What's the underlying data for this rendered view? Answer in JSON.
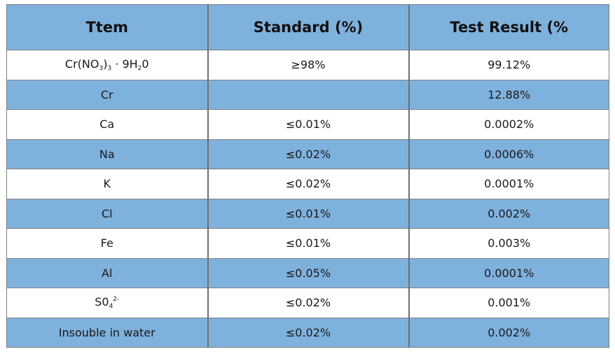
{
  "headers": [
    "Ttem",
    "Standard (%)",
    "Test Result (%"
  ],
  "first_row": {
    "item_parts": [
      "Cr(NO",
      "3",
      ")",
      "3",
      " · 9H",
      "2",
      "0"
    ],
    "standard": "≥98%",
    "result": "99.12%"
  },
  "rows": [
    {
      "item": "Cr",
      "standard": "",
      "result": "12.88%"
    },
    {
      "item": "Ca",
      "standard": "≤0.01%",
      "result": "0.0002%"
    },
    {
      "item": "Na",
      "standard": "≤0.02%",
      "result": "0.0006%"
    },
    {
      "item": "K",
      "standard": "≤0.02%",
      "result": "0.0001%"
    },
    {
      "item": "Cl",
      "standard": "≤0.01%",
      "result": "0.002%"
    },
    {
      "item": "Fe",
      "standard": "≤0.01%",
      "result": "0.003%"
    },
    {
      "item": "Al",
      "standard": "≤0.05%",
      "result": "0.0001%"
    }
  ],
  "so4_row": {
    "item_parts": [
      "S0",
      "4",
      "2-"
    ],
    "standard": "≤0.02%",
    "result": "0.001%"
  },
  "last_row": {
    "item": "Insouble in water",
    "standard": "≤0.02%",
    "result": "0.002%"
  },
  "colors": {
    "header_bg": "#7fb1dd",
    "band_bg": "#7fb1dd",
    "row_bg": "#ffffff",
    "border": "#7f7f7f"
  }
}
